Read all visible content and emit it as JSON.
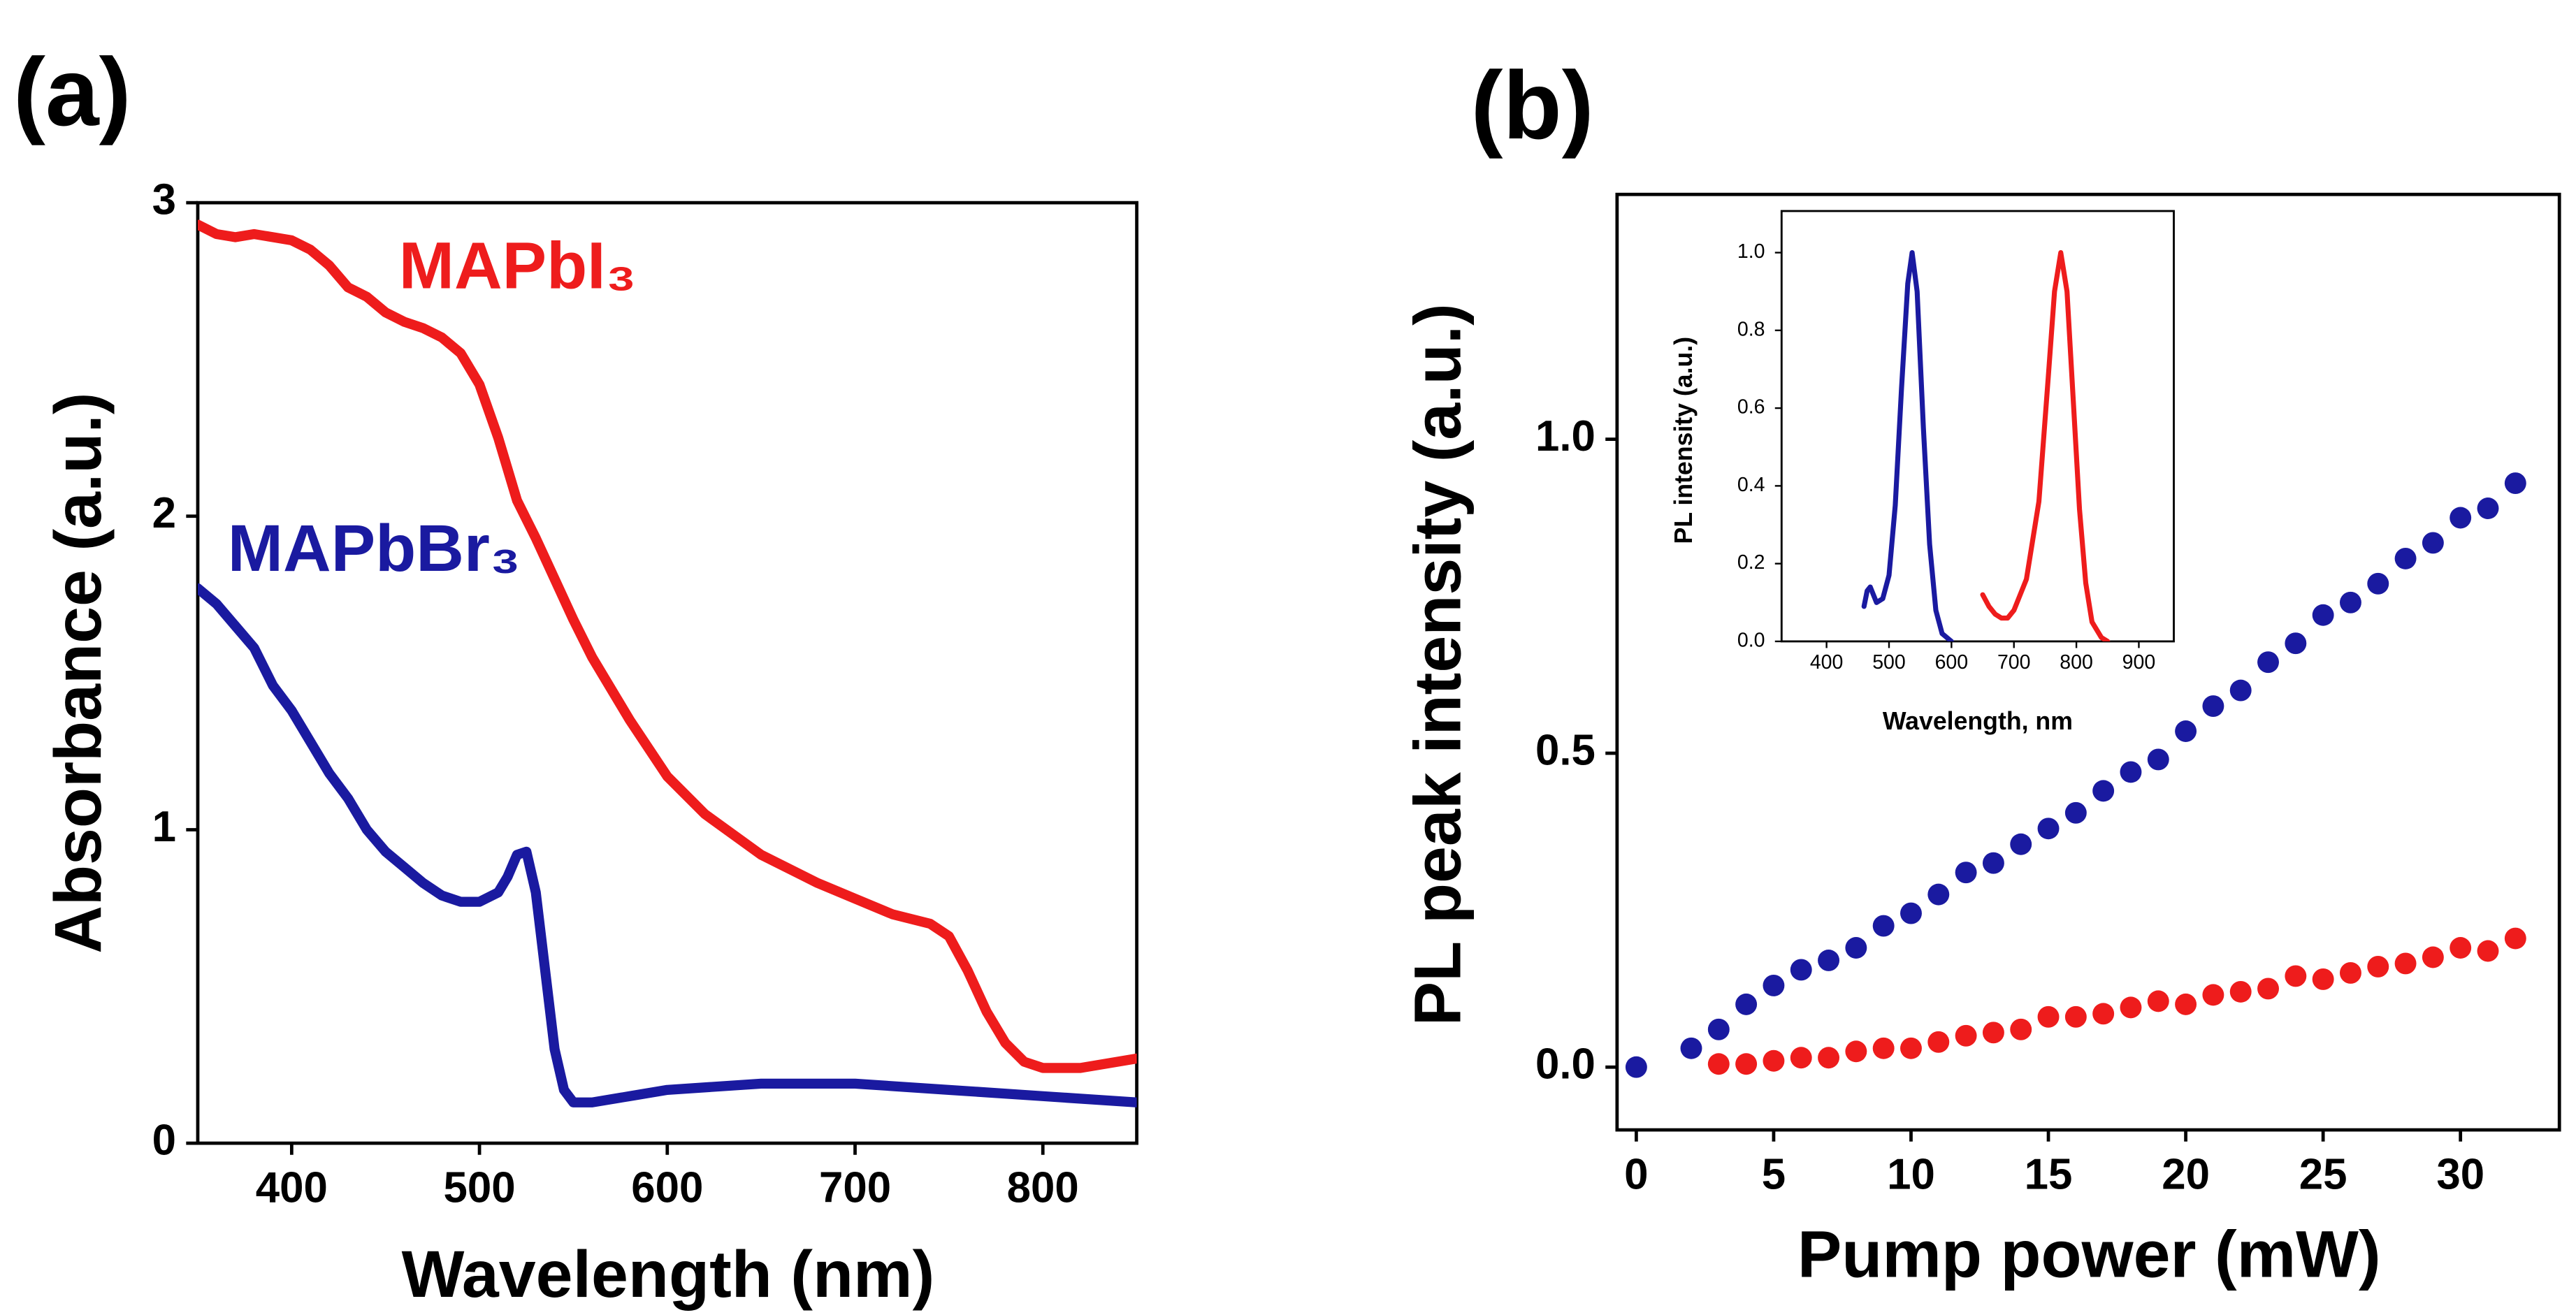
{
  "chart_data": [
    {
      "type": "line",
      "title": "(a)",
      "xlabel": "Wavelength (nm)",
      "ylabel": "Absorbance (a.u.)",
      "xlim": [
        350,
        850
      ],
      "ylim": [
        0,
        3
      ],
      "xticks": [
        400,
        500,
        600,
        700,
        800
      ],
      "yticks": [
        0,
        1,
        2,
        3
      ],
      "series": [
        {
          "name": "MAPbI₃",
          "color": "#ee1c1c",
          "x": [
            350,
            360,
            370,
            380,
            390,
            400,
            410,
            420,
            430,
            440,
            450,
            460,
            470,
            480,
            490,
            500,
            510,
            520,
            530,
            540,
            550,
            560,
            570,
            580,
            600,
            620,
            650,
            680,
            700,
            720,
            740,
            750,
            760,
            770,
            780,
            790,
            800,
            820,
            850
          ],
          "values": [
            2.93,
            2.9,
            2.89,
            2.9,
            2.89,
            2.88,
            2.85,
            2.8,
            2.73,
            2.7,
            2.65,
            2.62,
            2.6,
            2.57,
            2.52,
            2.42,
            2.25,
            2.05,
            1.93,
            1.8,
            1.67,
            1.55,
            1.45,
            1.35,
            1.17,
            1.05,
            0.92,
            0.83,
            0.78,
            0.73,
            0.7,
            0.66,
            0.55,
            0.42,
            0.32,
            0.26,
            0.24,
            0.24,
            0.27
          ]
        },
        {
          "name": "MAPbBr₃",
          "color": "#1a1aa0",
          "x": [
            350,
            360,
            370,
            380,
            390,
            400,
            410,
            420,
            430,
            440,
            450,
            460,
            470,
            480,
            490,
            500,
            510,
            515,
            520,
            525,
            530,
            535,
            540,
            545,
            550,
            560,
            580,
            600,
            650,
            700,
            750,
            800,
            850
          ],
          "values": [
            1.77,
            1.72,
            1.65,
            1.58,
            1.46,
            1.38,
            1.28,
            1.18,
            1.1,
            1.0,
            0.93,
            0.88,
            0.83,
            0.79,
            0.77,
            0.77,
            0.8,
            0.85,
            0.92,
            0.93,
            0.8,
            0.55,
            0.3,
            0.17,
            0.13,
            0.13,
            0.15,
            0.17,
            0.19,
            0.19,
            0.17,
            0.15,
            0.13
          ]
        }
      ]
    },
    {
      "type": "scatter",
      "title": "(b)",
      "xlabel": "Pump power (mW)",
      "ylabel": "PL peak intensity (a.u.)",
      "xlim": [
        -0.7,
        33.6
      ],
      "ylim": [
        -0.1,
        1.39
      ],
      "xticks": [
        0,
        5,
        10,
        15,
        20,
        25,
        30
      ],
      "yticks": [
        {
          "value": 0,
          "label": "0.0"
        },
        0.5,
        {
          "value": 1,
          "label": "1.0"
        }
      ],
      "series": [
        {
          "color": "#1a1aa0",
          "x": [
            0,
            2,
            3,
            4,
            5,
            6,
            7,
            8,
            9,
            10,
            11,
            12,
            13,
            14,
            15,
            16,
            17,
            18,
            19,
            20,
            21,
            22,
            23,
            24,
            25,
            26,
            27,
            28,
            29,
            30,
            31,
            32
          ],
          "values": [
            0,
            0.03,
            0.06,
            0.1,
            0.13,
            0.155,
            0.17,
            0.19,
            0.225,
            0.245,
            0.275,
            0.31,
            0.325,
            0.355,
            0.38,
            0.405,
            0.44,
            0.47,
            0.49,
            0.535,
            0.575,
            0.6,
            0.645,
            0.675,
            0.72,
            0.74,
            0.77,
            0.81,
            0.835,
            0.875,
            0.89,
            0.93
          ]
        },
        {
          "color": "#ee1c1c",
          "x": [
            3,
            4,
            5,
            6,
            7,
            8,
            9,
            10,
            11,
            12,
            13,
            14,
            15,
            16,
            17,
            18,
            19,
            20,
            21,
            22,
            23,
            24,
            25,
            26,
            27,
            28,
            29,
            30,
            31,
            32
          ],
          "values": [
            0.005,
            0.005,
            0.01,
            0.015,
            0.015,
            0.025,
            0.03,
            0.03,
            0.04,
            0.05,
            0.055,
            0.06,
            0.08,
            0.08,
            0.085,
            0.095,
            0.105,
            0.1,
            0.115,
            0.12,
            0.125,
            0.145,
            0.14,
            0.15,
            0.16,
            0.165,
            0.175,
            0.19,
            0.185,
            0.205
          ]
        }
      ]
    },
    {
      "type": "line",
      "xlabel": "Wavelength, nm",
      "ylabel": "PL intensity (a.u.)",
      "xlim": [
        328,
        956
      ],
      "ylim": [
        0,
        1.107
      ],
      "xticks": [
        400,
        500,
        600,
        700,
        800,
        900
      ],
      "yticks": [
        {
          "value": 0,
          "label": "0.0"
        },
        0.2,
        0.4,
        0.6,
        0.8,
        {
          "value": 1,
          "label": "1.0"
        }
      ],
      "series": [
        {
          "color": "#1a1aa0",
          "x": [
            460,
            465,
            470,
            475,
            480,
            490,
            500,
            510,
            520,
            530,
            537,
            545,
            555,
            565,
            575,
            585,
            600
          ],
          "values": [
            0.09,
            0.13,
            0.14,
            0.12,
            0.1,
            0.11,
            0.17,
            0.35,
            0.65,
            0.92,
            1.0,
            0.9,
            0.55,
            0.25,
            0.08,
            0.02,
            0.0
          ]
        },
        {
          "color": "#ee1c1c",
          "x": [
            650,
            660,
            670,
            680,
            690,
            700,
            720,
            740,
            755,
            765,
            775,
            785,
            795,
            805,
            815,
            825,
            840,
            850
          ],
          "values": [
            0.12,
            0.09,
            0.07,
            0.06,
            0.06,
            0.08,
            0.16,
            0.36,
            0.68,
            0.9,
            1.0,
            0.9,
            0.62,
            0.34,
            0.15,
            0.05,
            0.01,
            0.0
          ]
        }
      ]
    }
  ]
}
